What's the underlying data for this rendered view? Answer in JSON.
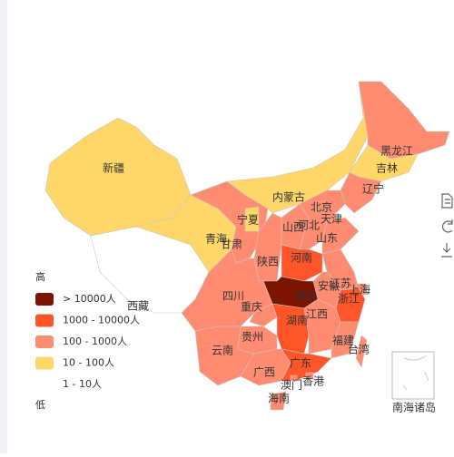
{
  "map": {
    "legend": {
      "high": "高",
      "low": "低",
      "pieces": [
        {
          "label": "> 10000人",
          "color": "#7b1502"
        },
        {
          "label": "1000 - 10000人",
          "color": "#ff5529"
        },
        {
          "label": "100 - 1000人",
          "color": "#ff8c71"
        },
        {
          "label": "10 - 100人",
          "color": "#ffd768"
        },
        {
          "label": "1 - 10人",
          "color": "#ffffff"
        }
      ]
    },
    "regions": [
      {
        "name": "新疆",
        "color": "#ffd768"
      },
      {
        "name": "西藏",
        "color": "#ffffff"
      },
      {
        "name": "青海",
        "color": "#ffd768"
      },
      {
        "name": "甘肃",
        "color": "#ff8c71"
      },
      {
        "name": "内蒙古",
        "color": "#ffd768"
      },
      {
        "name": "黑龙江",
        "color": "#ff8c71"
      },
      {
        "name": "吉林",
        "color": "#ffd768"
      },
      {
        "name": "辽宁",
        "color": "#ff8c71"
      },
      {
        "name": "宁夏",
        "color": "#ffd768"
      },
      {
        "name": "陕西",
        "color": "#ff8c71"
      },
      {
        "name": "山西",
        "color": "#ff8c71"
      },
      {
        "name": "河北",
        "color": "#ff8c71"
      },
      {
        "name": "北京",
        "color": "#ff8c71"
      },
      {
        "name": "天津",
        "color": "#ff8c71"
      },
      {
        "name": "山东",
        "color": "#ff8c71"
      },
      {
        "name": "河南",
        "color": "#ff5529"
      },
      {
        "name": "江苏",
        "color": "#ff8c71"
      },
      {
        "name": "安徽",
        "color": "#ff8c71"
      },
      {
        "name": "上海",
        "color": "#ff8c71"
      },
      {
        "name": "浙江",
        "color": "#ff5529"
      },
      {
        "name": "湖北",
        "color": "#7b1502"
      },
      {
        "name": "四川",
        "color": "#ff8c71"
      },
      {
        "name": "重庆",
        "color": "#ff8c71"
      },
      {
        "name": "湖南",
        "color": "#ff5529"
      },
      {
        "name": "江西",
        "color": "#ff8c71"
      },
      {
        "name": "福建",
        "color": "#ff8c71"
      },
      {
        "name": "台湾",
        "color": "#ff8c71"
      },
      {
        "name": "贵州",
        "color": "#ff8c71"
      },
      {
        "name": "云南",
        "color": "#ff8c71"
      },
      {
        "name": "广西",
        "color": "#ff8c71"
      },
      {
        "name": "广东",
        "color": "#ff5529"
      },
      {
        "name": "香港",
        "color": "#ff8c71"
      },
      {
        "name": "澳门",
        "color": "#ff8c71"
      },
      {
        "name": "海南",
        "color": "#ff8c71"
      }
    ],
    "inset_label": "南海诸岛"
  }
}
